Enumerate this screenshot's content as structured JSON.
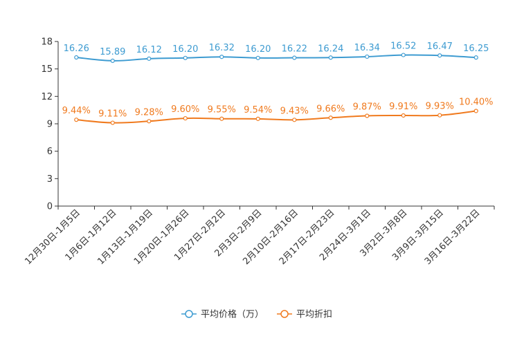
{
  "chart_data": {
    "type": "line",
    "title": "",
    "xlabel": "",
    "ylabel": "",
    "ylim": [
      0,
      18
    ],
    "yticks": [
      0,
      3,
      6,
      9,
      12,
      15,
      18
    ],
    "grid": false,
    "legend_position": "bottom-center",
    "categories": [
      "12月30日-1月5日",
      "1月6日-1月12日",
      "1月13日-1月19日",
      "1月20日-1月26日",
      "1月27日-2月2日",
      "2月3日-2月9日",
      "2月10日-2月16日",
      "2月17日-2月23日",
      "2月24日-3月1日",
      "3月2日-3月8日",
      "3月9日-3月15日",
      "3月16日-3月22日"
    ],
    "series": [
      {
        "name": "平均价格（万）",
        "color": "#3d9bd1",
        "values": [
          16.26,
          15.89,
          16.12,
          16.2,
          16.32,
          16.2,
          16.22,
          16.24,
          16.34,
          16.52,
          16.47,
          16.25
        ],
        "labels": [
          "16.26",
          "15.89",
          "16.12",
          "16.20",
          "16.32",
          "16.20",
          "16.22",
          "16.24",
          "16.34",
          "16.52",
          "16.47",
          "16.25"
        ]
      },
      {
        "name": "平均折扣",
        "color": "#f07a1e",
        "values": [
          9.44,
          9.11,
          9.28,
          9.6,
          9.55,
          9.54,
          9.43,
          9.66,
          9.87,
          9.91,
          9.93,
          10.4
        ],
        "labels": [
          "9.44%",
          "9.11%",
          "9.28%",
          "9.60%",
          "9.55%",
          "9.54%",
          "9.43%",
          "9.66%",
          "9.87%",
          "9.91%",
          "9.93%",
          "10.40%"
        ]
      }
    ]
  }
}
